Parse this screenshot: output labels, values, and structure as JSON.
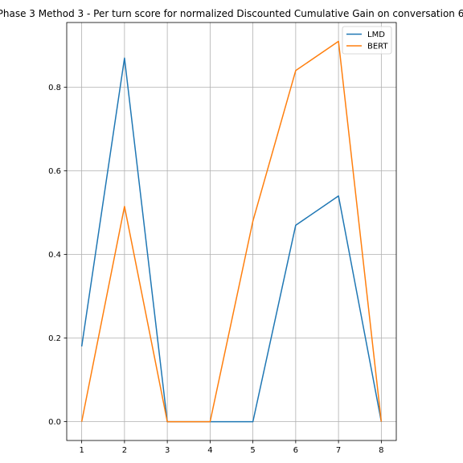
{
  "chart_data": {
    "type": "line",
    "title": "Phase 3 Method 3 - Per turn score for normalized Discounted Cumulative Gain on conversation 6",
    "xlabel": "",
    "ylabel": "",
    "x": [
      1,
      2,
      3,
      4,
      5,
      6,
      7,
      8
    ],
    "xticks": [
      "1",
      "2",
      "3",
      "4",
      "5",
      "6",
      "7",
      "8"
    ],
    "xlim": [
      0.65,
      8.35
    ],
    "yticks": [
      "0.0",
      "0.2",
      "0.4",
      "0.6",
      "0.8"
    ],
    "ytick_values": [
      0.0,
      0.2,
      0.4,
      0.6,
      0.8
    ],
    "ylim": [
      -0.045,
      0.955
    ],
    "grid": true,
    "legend_position": "top-right",
    "series": [
      {
        "name": "LMD",
        "color": "#1f77b4",
        "values": [
          0.18,
          0.87,
          0.0,
          0.0,
          0.0,
          0.47,
          0.54,
          0.0
        ]
      },
      {
        "name": "BERT",
        "color": "#ff7f0e",
        "values": [
          0.0,
          0.515,
          0.0,
          0.0,
          0.48,
          0.84,
          0.91,
          0.0
        ]
      }
    ]
  }
}
